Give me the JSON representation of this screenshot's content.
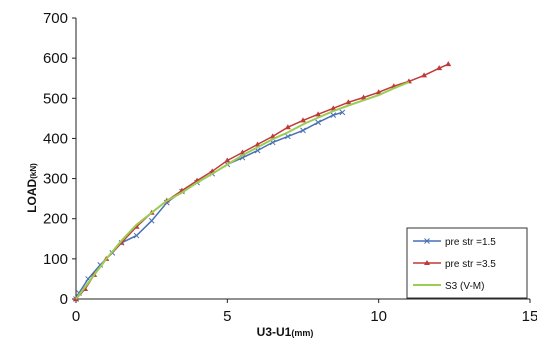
{
  "chart_data": {
    "type": "line",
    "xlabel": {
      "main": "U3-U1",
      "unit": "(mm)"
    },
    "ylabel": {
      "main": "LOAD",
      "unit": "(kN)"
    },
    "xlim": [
      0,
      15
    ],
    "ylim": [
      0,
      700
    ],
    "x_ticks": [
      "0",
      "5",
      "10",
      "15"
    ],
    "y_ticks": [
      "0",
      "100",
      "200",
      "300",
      "400",
      "500",
      "600",
      "700"
    ],
    "grid": false,
    "legend_position": "bottom-right",
    "series": [
      {
        "name": "pre str =1.5",
        "color": "#4a6fb5",
        "marker": "x",
        "points": [
          [
            0,
            0
          ],
          [
            0.1,
            15
          ],
          [
            0.4,
            50
          ],
          [
            0.8,
            85
          ],
          [
            1.2,
            115
          ],
          [
            1.5,
            140
          ],
          [
            2.0,
            158
          ],
          [
            2.5,
            195
          ],
          [
            3.0,
            240
          ],
          [
            3.5,
            268
          ],
          [
            4.0,
            290
          ],
          [
            4.5,
            312
          ],
          [
            5.0,
            335
          ],
          [
            5.5,
            352
          ],
          [
            6.0,
            370
          ],
          [
            6.5,
            390
          ],
          [
            7.0,
            405
          ],
          [
            7.5,
            420
          ],
          [
            8.0,
            440
          ],
          [
            8.5,
            458
          ],
          [
            8.8,
            465
          ]
        ]
      },
      {
        "name": "pre str =3.5",
        "color": "#c0393b",
        "marker": "triangle",
        "points": [
          [
            0,
            0
          ],
          [
            0.3,
            25
          ],
          [
            0.6,
            60
          ],
          [
            1.0,
            100
          ],
          [
            1.5,
            140
          ],
          [
            2.0,
            180
          ],
          [
            2.5,
            215
          ],
          [
            3.0,
            245
          ],
          [
            3.5,
            270
          ],
          [
            4.0,
            295
          ],
          [
            4.5,
            318
          ],
          [
            5.0,
            345
          ],
          [
            5.5,
            365
          ],
          [
            6.0,
            385
          ],
          [
            6.5,
            405
          ],
          [
            7.0,
            428
          ],
          [
            7.5,
            445
          ],
          [
            8.0,
            460
          ],
          [
            8.5,
            475
          ],
          [
            9.0,
            490
          ],
          [
            9.5,
            502
          ],
          [
            10.0,
            515
          ],
          [
            10.5,
            530
          ],
          [
            11.0,
            542
          ],
          [
            11.5,
            557
          ],
          [
            12.0,
            575
          ],
          [
            12.3,
            585
          ]
        ]
      },
      {
        "name": "S3 (V-M)",
        "color": "#9acd52",
        "marker": "none",
        "points": [
          [
            0,
            0
          ],
          [
            0.3,
            30
          ],
          [
            0.7,
            70
          ],
          [
            1.0,
            100
          ],
          [
            1.5,
            145
          ],
          [
            2.0,
            185
          ],
          [
            2.5,
            215
          ],
          [
            3.0,
            245
          ],
          [
            3.5,
            265
          ],
          [
            4.0,
            290
          ],
          [
            4.5,
            312
          ],
          [
            5.0,
            335
          ],
          [
            5.5,
            358
          ],
          [
            6.0,
            378
          ],
          [
            6.5,
            398
          ],
          [
            7.0,
            415
          ],
          [
            7.5,
            435
          ],
          [
            8.0,
            452
          ],
          [
            8.5,
            468
          ],
          [
            9.0,
            482
          ],
          [
            9.5,
            495
          ],
          [
            10.0,
            508
          ],
          [
            10.5,
            525
          ],
          [
            11.0,
            540
          ]
        ]
      }
    ]
  }
}
